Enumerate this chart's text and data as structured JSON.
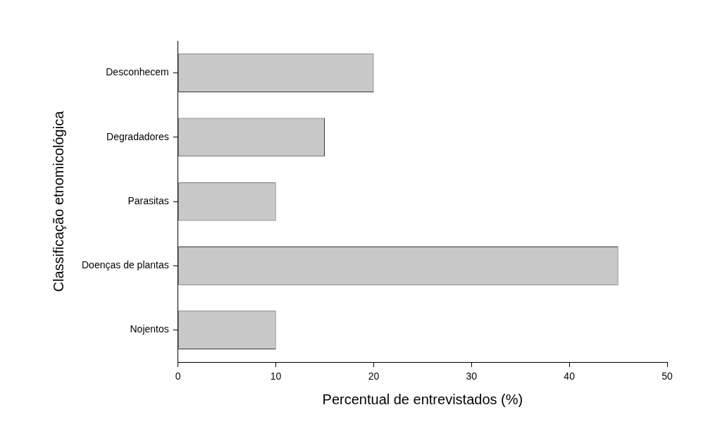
{
  "chart_data": {
    "type": "bar",
    "orientation": "horizontal",
    "categories": [
      "Desconhecem",
      "Degradadores",
      "Parasitas",
      "Doenças de plantas",
      "Nojentos"
    ],
    "values": [
      20,
      15,
      10,
      45,
      10
    ],
    "color": "#c8c8c8",
    "xlabel": "Percentual de entrevistados (%)",
    "ylabel": "Classificação etnomicológica",
    "xlim": [
      0,
      50
    ],
    "xticks": [
      0,
      10,
      20,
      30,
      40,
      50
    ],
    "grid": false,
    "legend": false
  }
}
